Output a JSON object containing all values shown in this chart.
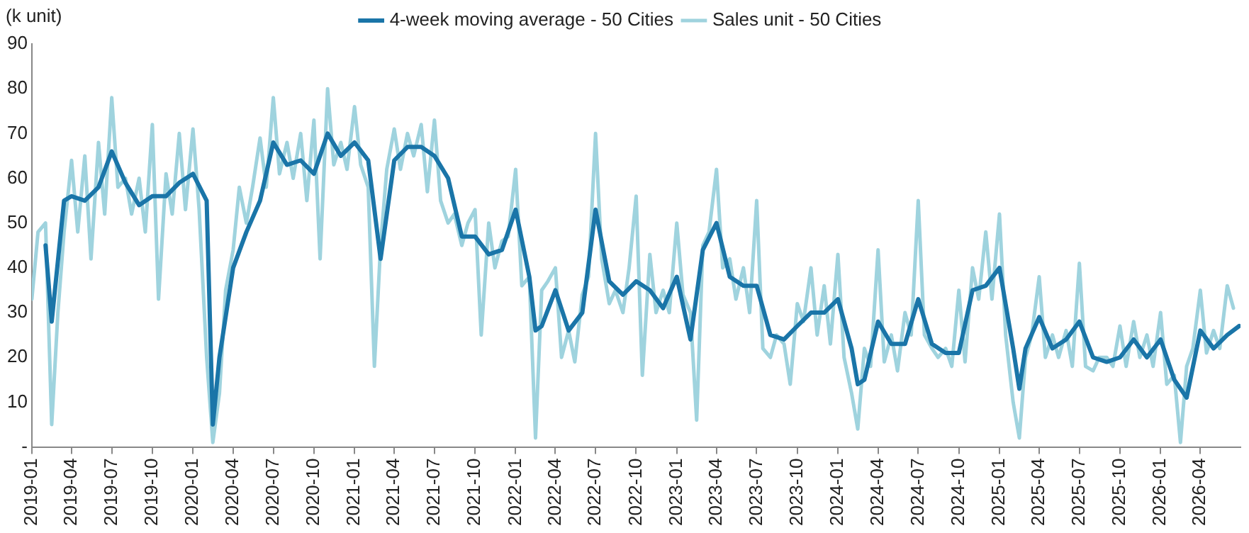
{
  "chart_data": {
    "type": "line",
    "ylabel": "(k unit)",
    "legend": "top",
    "grid": false,
    "marker": "none",
    "line_style": "solid",
    "xlim": [
      "2019-01",
      "2026-07"
    ],
    "xticks": [
      "2019-01",
      "2019-04",
      "2019-07",
      "2019-10",
      "2020-01",
      "2020-04",
      "2020-07",
      "2020-10",
      "2021-01",
      "2021-04",
      "2021-07",
      "2021-10",
      "2022-01",
      "2022-04",
      "2022-07",
      "2022-10",
      "2023-01",
      "2023-04",
      "2023-07",
      "2023-10",
      "2024-01",
      "2024-04",
      "2024-07",
      "2024-10",
      "2025-01",
      "2025-04",
      "2025-07",
      "2025-10",
      "2026-01",
      "2026-04"
    ],
    "ylim": [
      0,
      90
    ],
    "yticks": [
      {
        "value": 0,
        "label": "-"
      },
      10,
      20,
      30,
      40,
      50,
      60,
      70,
      80,
      90
    ],
    "series": [
      {
        "name": "Sales unit - 50 Cities",
        "color": "#9fd3de",
        "x": [
          "2019-01-01",
          "2019-01-15",
          "2019-02-01",
          "2019-02-15",
          "2019-03-01",
          "2019-03-15",
          "2019-04-01",
          "2019-04-15",
          "2019-05-01",
          "2019-05-15",
          "2019-06-01",
          "2019-06-15",
          "2019-07-01",
          "2019-07-15",
          "2019-08-01",
          "2019-08-15",
          "2019-09-01",
          "2019-09-15",
          "2019-10-01",
          "2019-10-15",
          "2019-11-01",
          "2019-11-15",
          "2019-12-01",
          "2019-12-15",
          "2020-01-01",
          "2020-01-15",
          "2020-02-01",
          "2020-02-15",
          "2020-03-01",
          "2020-03-15",
          "2020-04-01",
          "2020-04-15",
          "2020-05-01",
          "2020-05-15",
          "2020-06-01",
          "2020-06-15",
          "2020-07-01",
          "2020-07-15",
          "2020-08-01",
          "2020-08-15",
          "2020-09-01",
          "2020-09-15",
          "2020-10-01",
          "2020-10-15",
          "2020-11-01",
          "2020-11-15",
          "2020-12-01",
          "2020-12-15",
          "2021-01-01",
          "2021-01-15",
          "2021-02-01",
          "2021-02-15",
          "2021-03-01",
          "2021-03-15",
          "2021-04-01",
          "2021-04-15",
          "2021-05-01",
          "2021-05-15",
          "2021-06-01",
          "2021-06-15",
          "2021-07-01",
          "2021-07-15",
          "2021-08-01",
          "2021-08-15",
          "2021-09-01",
          "2021-09-15",
          "2021-10-01",
          "2021-10-15",
          "2021-11-01",
          "2021-11-15",
          "2021-12-01",
          "2021-12-15",
          "2022-01-01",
          "2022-01-15",
          "2022-02-01",
          "2022-02-15",
          "2022-03-01",
          "2022-03-15",
          "2022-04-01",
          "2022-04-15",
          "2022-05-01",
          "2022-05-15",
          "2022-06-01",
          "2022-06-15",
          "2022-07-01",
          "2022-07-15",
          "2022-08-01",
          "2022-08-15",
          "2022-09-01",
          "2022-09-15",
          "2022-10-01",
          "2022-10-15",
          "2022-11-01",
          "2022-11-15",
          "2022-12-01",
          "2022-12-15",
          "2023-01-01",
          "2023-01-15",
          "2023-02-01",
          "2023-02-15",
          "2023-03-01",
          "2023-03-15",
          "2023-04-01",
          "2023-04-15",
          "2023-05-01",
          "2023-05-15",
          "2023-06-01",
          "2023-06-15",
          "2023-07-01",
          "2023-07-15",
          "2023-08-01",
          "2023-08-15",
          "2023-09-01",
          "2023-09-15",
          "2023-10-01",
          "2023-10-15",
          "2023-11-01",
          "2023-11-15",
          "2023-12-01",
          "2023-12-15",
          "2024-01-01",
          "2024-01-15",
          "2024-02-01",
          "2024-02-15",
          "2024-03-01",
          "2024-03-15",
          "2024-04-01",
          "2024-04-15",
          "2024-05-01",
          "2024-05-15",
          "2024-06-01",
          "2024-06-15",
          "2024-07-01",
          "2024-07-15",
          "2024-08-01",
          "2024-08-15",
          "2024-09-01",
          "2024-09-15",
          "2024-10-01",
          "2024-10-15",
          "2024-11-01",
          "2024-11-15",
          "2024-12-01",
          "2024-12-15",
          "2025-01-01",
          "2025-01-15",
          "2025-02-01",
          "2025-02-15",
          "2025-03-01",
          "2025-03-15",
          "2025-04-01",
          "2025-04-15",
          "2025-05-01",
          "2025-05-15",
          "2025-06-01",
          "2025-06-15",
          "2025-07-01",
          "2025-07-15",
          "2025-08-01",
          "2025-08-15",
          "2025-09-01",
          "2025-09-15",
          "2025-10-01",
          "2025-10-15",
          "2025-11-01",
          "2025-11-15",
          "2025-12-01",
          "2025-12-15",
          "2026-01-01",
          "2026-01-15",
          "2026-02-01",
          "2026-02-15",
          "2026-03-01",
          "2026-03-15",
          "2026-04-01",
          "2026-04-15",
          "2026-05-01",
          "2026-05-15",
          "2026-06-01",
          "2026-06-15"
        ],
        "values": [
          33,
          48,
          50,
          5,
          30,
          48,
          64,
          48,
          65,
          42,
          68,
          52,
          78,
          58,
          60,
          52,
          60,
          48,
          72,
          33,
          61,
          52,
          70,
          53,
          71,
          53,
          20,
          1,
          12,
          35,
          44,
          58,
          50,
          58,
          69,
          58,
          78,
          61,
          68,
          60,
          70,
          55,
          73,
          42,
          80,
          63,
          68,
          62,
          76,
          63,
          58,
          18,
          45,
          62,
          71,
          62,
          70,
          65,
          72,
          57,
          73,
          55,
          50,
          52,
          45,
          50,
          53,
          25,
          50,
          40,
          46,
          47,
          62,
          36,
          38,
          2,
          35,
          37,
          40,
          20,
          26,
          19,
          34,
          38,
          70,
          42,
          32,
          35,
          30,
          40,
          56,
          16,
          43,
          30,
          35,
          30,
          50,
          34,
          30,
          6,
          45,
          48,
          62,
          40,
          42,
          33,
          40,
          30,
          55,
          22,
          20,
          25,
          23,
          14,
          32,
          28,
          40,
          25,
          36,
          23,
          43,
          20,
          12,
          4,
          22,
          18,
          44,
          19,
          25,
          17,
          30,
          25,
          55,
          25,
          22,
          20,
          22,
          18,
          35,
          19,
          40,
          33,
          48,
          33,
          52,
          25,
          10,
          2,
          20,
          25,
          38,
          20,
          25,
          20,
          26,
          18,
          41,
          18,
          17,
          20,
          20,
          18,
          27,
          18,
          28,
          20,
          25,
          18,
          30,
          14,
          16,
          1,
          18,
          22,
          35,
          21,
          26,
          22,
          36,
          31
        ]
      },
      {
        "name": "4-week moving average - 50 Cities",
        "color": "#1a75a8",
        "x": [
          "2019-02-01",
          "2019-02-15",
          "2019-03-15",
          "2019-04-01",
          "2019-05-01",
          "2019-06-01",
          "2019-07-01",
          "2019-08-01",
          "2019-09-01",
          "2019-10-01",
          "2019-11-01",
          "2019-12-01",
          "2020-01-01",
          "2020-02-01",
          "2020-02-15",
          "2020-03-01",
          "2020-04-01",
          "2020-05-01",
          "2020-06-01",
          "2020-07-01",
          "2020-08-01",
          "2020-09-01",
          "2020-10-01",
          "2020-11-01",
          "2020-12-01",
          "2021-01-01",
          "2021-02-01",
          "2021-03-01",
          "2021-04-01",
          "2021-05-01",
          "2021-06-01",
          "2021-07-01",
          "2021-08-01",
          "2021-09-01",
          "2021-10-01",
          "2021-11-01",
          "2021-12-01",
          "2022-01-01",
          "2022-02-01",
          "2022-02-15",
          "2022-03-01",
          "2022-04-01",
          "2022-05-01",
          "2022-06-01",
          "2022-07-01",
          "2022-08-01",
          "2022-09-01",
          "2022-10-01",
          "2022-11-01",
          "2022-12-01",
          "2023-01-01",
          "2023-02-01",
          "2023-03-01",
          "2023-04-01",
          "2023-05-01",
          "2023-06-01",
          "2023-07-01",
          "2023-08-01",
          "2023-09-01",
          "2023-10-01",
          "2023-11-01",
          "2023-12-01",
          "2024-01-01",
          "2024-02-01",
          "2024-02-15",
          "2024-03-01",
          "2024-04-01",
          "2024-05-01",
          "2024-06-01",
          "2024-07-01",
          "2024-08-01",
          "2024-09-01",
          "2024-10-01",
          "2024-11-01",
          "2024-12-01",
          "2025-01-01",
          "2025-02-01",
          "2025-02-15",
          "2025-03-01",
          "2025-04-01",
          "2025-05-01",
          "2025-06-01",
          "2025-07-01",
          "2025-08-01",
          "2025-09-01",
          "2025-10-01",
          "2025-11-01",
          "2025-12-01",
          "2026-01-01",
          "2026-02-01",
          "2026-03-01",
          "2026-04-01",
          "2026-05-01",
          "2026-06-01",
          "2026-06-28"
        ],
        "values": [
          45,
          28,
          55,
          56,
          55,
          58,
          66,
          59,
          54,
          56,
          56,
          59,
          61,
          55,
          5,
          20,
          40,
          48,
          55,
          68,
          63,
          64,
          61,
          70,
          65,
          68,
          64,
          42,
          64,
          67,
          67,
          65,
          60,
          47,
          47,
          43,
          44,
          53,
          38,
          26,
          27,
          35,
          26,
          30,
          53,
          37,
          34,
          37,
          35,
          31,
          38,
          24,
          44,
          50,
          38,
          36,
          36,
          25,
          24,
          27,
          30,
          30,
          33,
          22,
          14,
          15,
          28,
          23,
          23,
          33,
          23,
          21,
          21,
          35,
          36,
          40,
          22,
          13,
          22,
          29,
          22,
          24,
          28,
          20,
          19,
          20,
          24,
          20,
          24,
          15,
          11,
          26,
          22,
          25,
          27
        ]
      }
    ]
  }
}
